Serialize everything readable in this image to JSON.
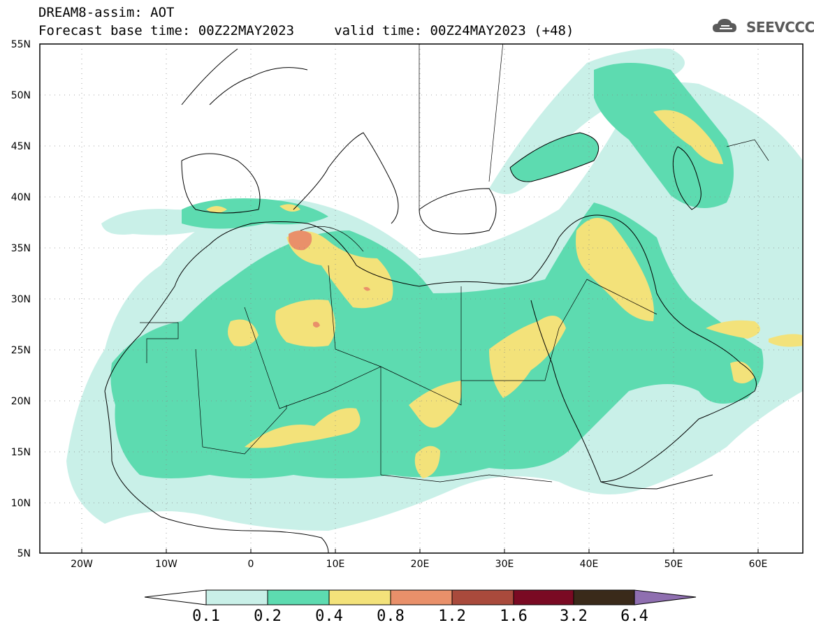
{
  "header": {
    "line1": "DREAM8-assim: AOT",
    "line2": "Forecast base time: 00Z22MAY2023     valid time: 00Z24MAY2023 (+48)"
  },
  "logo": {
    "text": "SEEVCCC",
    "icon": "cloud-icon"
  },
  "map": {
    "lon_range": [
      -25,
      65
    ],
    "lat_range": [
      5,
      55
    ],
    "lon_ticks": [
      "20W",
      "10W",
      "0",
      "10E",
      "20E",
      "30E",
      "40E",
      "50E",
      "60E"
    ],
    "lat_ticks": [
      "55N",
      "50N",
      "45N",
      "40N",
      "35N",
      "30N",
      "25N",
      "20N",
      "15N",
      "10N",
      "5N"
    ],
    "grid": "dotted"
  },
  "colorbar": {
    "levels": [
      "0.1",
      "0.2",
      "0.4",
      "0.8",
      "1.2",
      "1.6",
      "3.2",
      "6.4"
    ],
    "colors": [
      "#ffffff",
      "#c9f0e8",
      "#5ddbb0",
      "#f3e27a",
      "#e9906a",
      "#a94a3c",
      "#7a0a23",
      "#3a2a1a",
      "#8f6fb0"
    ]
  }
}
